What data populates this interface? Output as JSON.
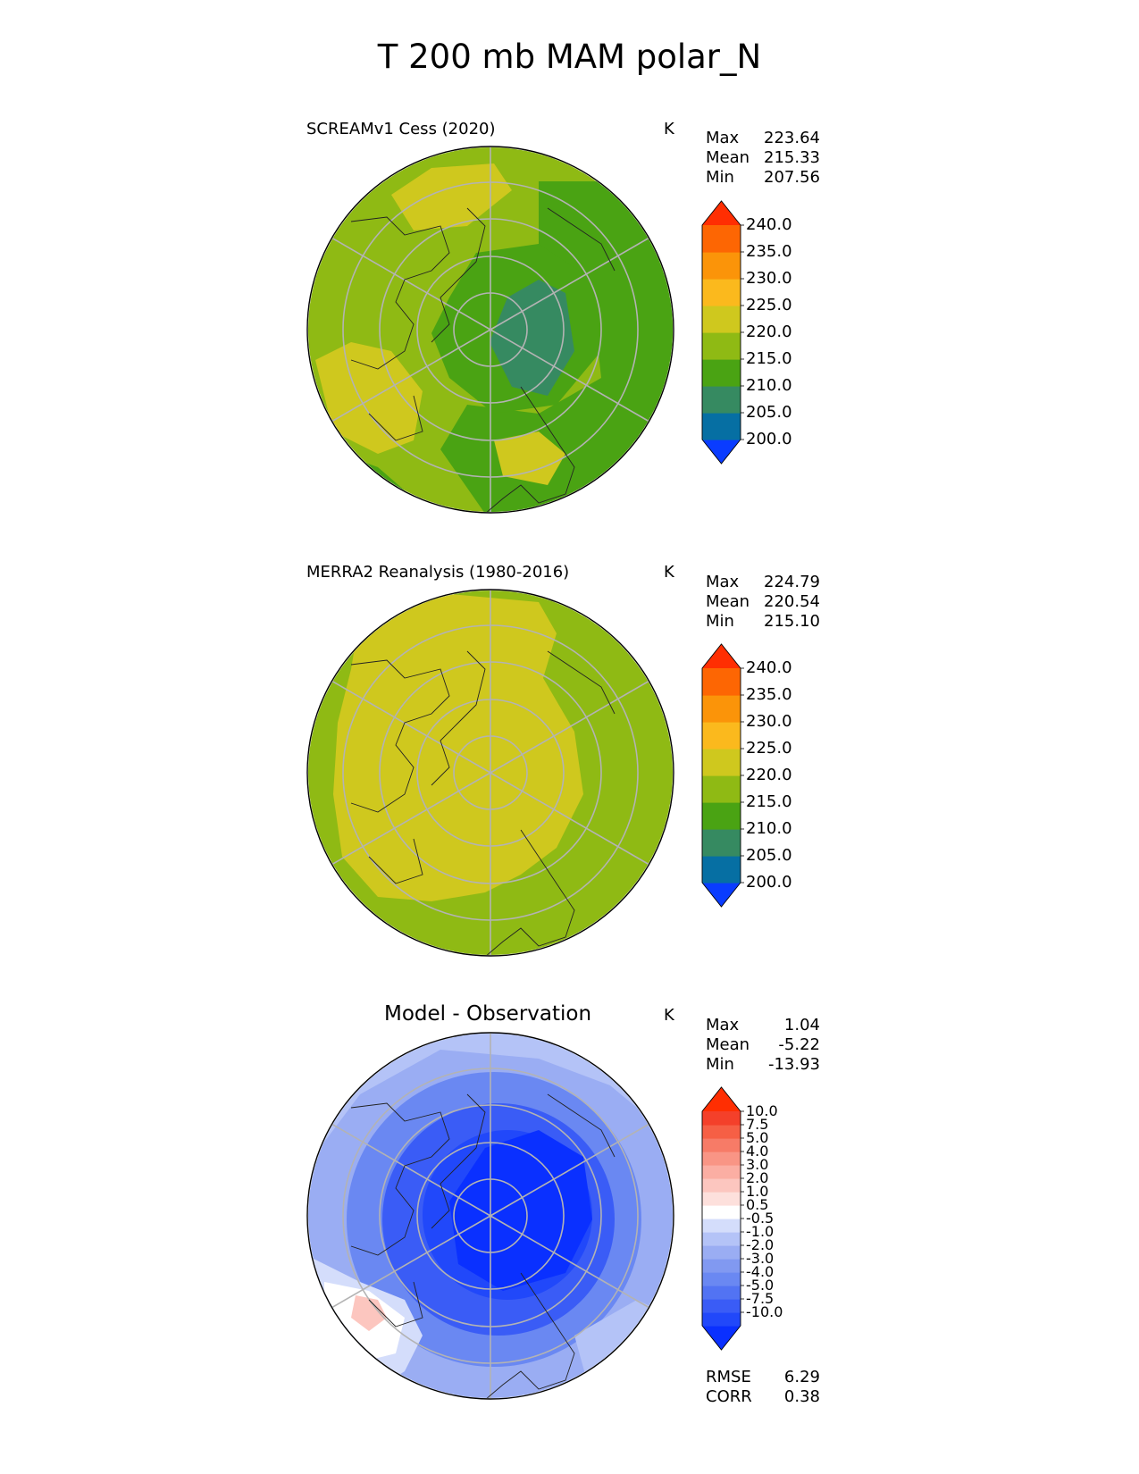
{
  "figure_title": "T 200 mb MAM polar_N",
  "panels": [
    {
      "title": "SCREAMv1 Cess (2020)",
      "unit": "K",
      "stats": [
        {
          "label": "Max",
          "value": "223.64"
        },
        {
          "label": "Mean",
          "value": "215.33"
        },
        {
          "label": "Min",
          "value": "207.56"
        }
      ],
      "colorbar": {
        "ticks": [
          "240.0",
          "235.0",
          "230.0",
          "225.0",
          "220.0",
          "215.0",
          "210.0",
          "205.0",
          "200.0"
        ],
        "colors": [
          "#0a3cff",
          "#066fa3",
          "#368a61",
          "#4aa313",
          "#8fba14",
          "#cfc81e",
          "#fbb91d",
          "#fb9409",
          "#fd6603",
          "#ff2e02"
        ]
      }
    },
    {
      "title": "MERRA2 Reanalysis (1980-2016)",
      "unit": "K",
      "stats": [
        {
          "label": "Max",
          "value": "224.79"
        },
        {
          "label": "Mean",
          "value": "220.54"
        },
        {
          "label": "Min",
          "value": "215.10"
        }
      ],
      "colorbar": {
        "ticks": [
          "240.0",
          "235.0",
          "230.0",
          "225.0",
          "220.0",
          "215.0",
          "210.0",
          "205.0",
          "200.0"
        ],
        "colors": [
          "#0a3cff",
          "#066fa3",
          "#368a61",
          "#4aa313",
          "#8fba14",
          "#cfc81e",
          "#fbb91d",
          "#fb9409",
          "#fd6603",
          "#ff2e02"
        ]
      }
    },
    {
      "title": "Model - Observation",
      "unit": "K",
      "stats": [
        {
          "label": "Max",
          "value": "1.04"
        },
        {
          "label": "Mean",
          "value": "-5.22"
        },
        {
          "label": "Min",
          "value": "-13.93"
        }
      ],
      "colorbar": {
        "ticks": [
          "10.0",
          "7.5",
          "5.0",
          "4.0",
          "3.0",
          "2.0",
          "1.0",
          "0.5",
          "-0.5",
          "-1.0",
          "-2.0",
          "-3.0",
          "-4.0",
          "-5.0",
          "-7.5",
          "-10.0"
        ],
        "colors": [
          "#0a30ff",
          "#2148fa",
          "#3a5cf6",
          "#5273f3",
          "#6a88f2",
          "#8199f1",
          "#9aadf3",
          "#b4c3f7",
          "#d4ddfb",
          "#ffffff",
          "#fde0dc",
          "#fcc6bf",
          "#fbaea3",
          "#f99585",
          "#f77b67",
          "#f65f45",
          "#f4402a",
          "#ff2e02"
        ]
      },
      "metrics": [
        {
          "label": "RMSE",
          "value": "6.29"
        },
        {
          "label": "CORR",
          "value": "0.38"
        }
      ]
    }
  ],
  "chart_data": [
    {
      "type": "heatmap",
      "title": "SCREAMv1 Cess (2020)",
      "projection": "north-polar-stereographic",
      "variable": "T 200 mb MAM",
      "unit": "K",
      "max": 223.64,
      "mean": 215.33,
      "min": 207.56,
      "colorbar_levels": [
        200,
        205,
        210,
        215,
        220,
        225,
        230,
        235,
        240
      ],
      "colors": {
        "below_210": "#368a61",
        "210_215": "#4aa313",
        "215_220": "#8fba14",
        "220_225": "#cfc81e"
      }
    },
    {
      "type": "heatmap",
      "title": "MERRA2 Reanalysis (1980-2016)",
      "projection": "north-polar-stereographic",
      "variable": "T 200 mb MAM",
      "unit": "K",
      "max": 224.79,
      "mean": 220.54,
      "min": 215.1,
      "colorbar_levels": [
        200,
        205,
        210,
        215,
        220,
        225,
        230,
        235,
        240
      ]
    },
    {
      "type": "heatmap",
      "title": "Model - Observation",
      "projection": "north-polar-stereographic",
      "variable": "T 200 mb MAM",
      "unit": "K",
      "max": 1.04,
      "mean": -5.22,
      "min": -13.93,
      "rmse": 6.29,
      "corr": 0.38,
      "colorbar_levels": [
        -10,
        -7.5,
        -5,
        -4,
        -3,
        -2,
        -1,
        -0.5,
        0.5,
        1,
        2,
        3,
        4,
        5,
        7.5,
        10
      ]
    }
  ]
}
